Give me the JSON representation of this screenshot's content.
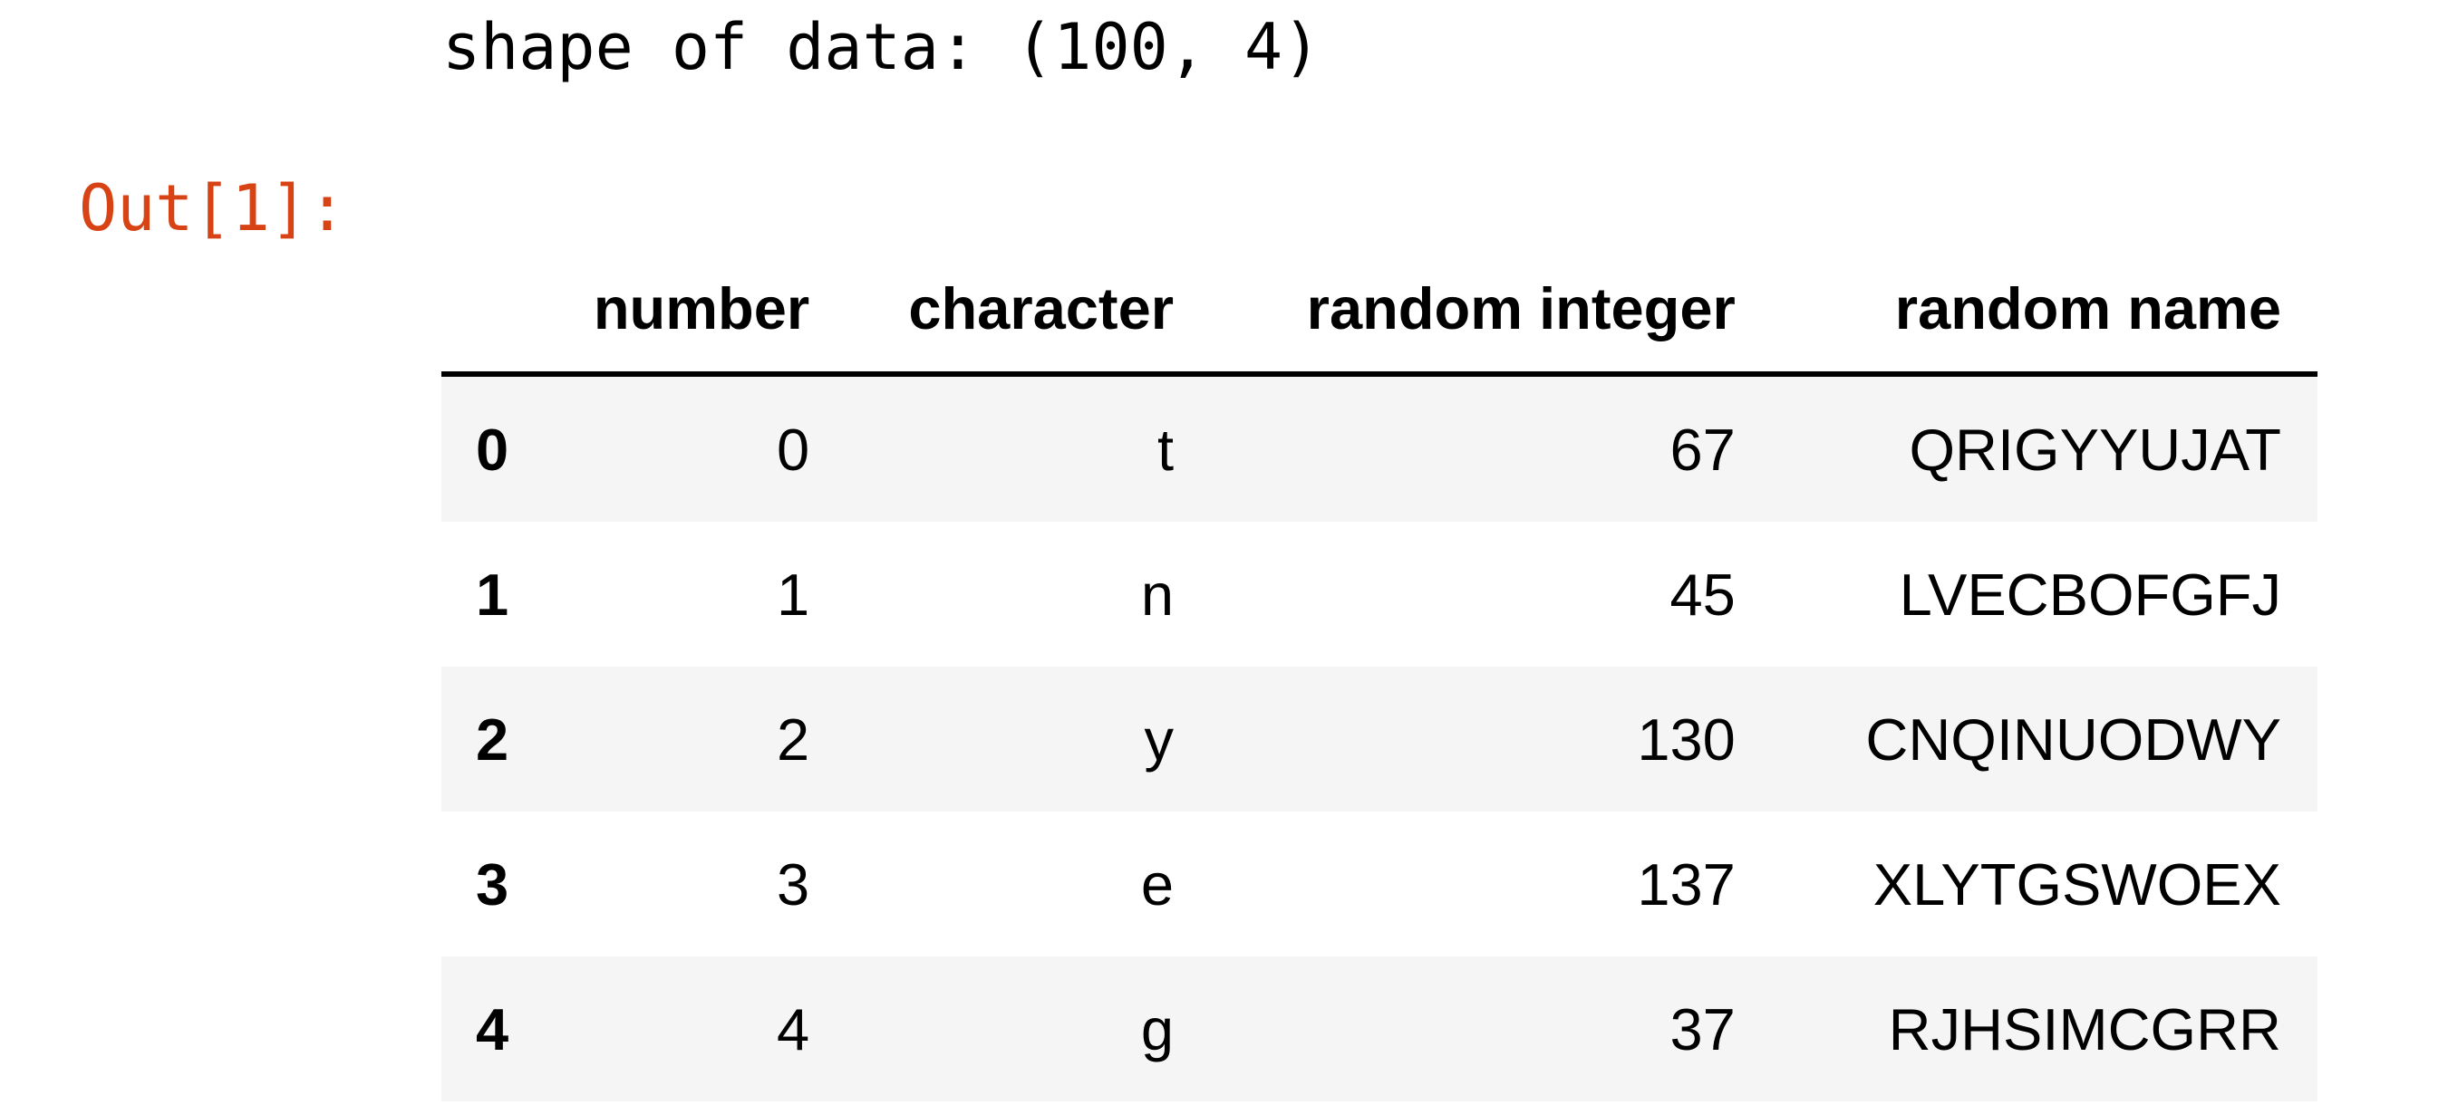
{
  "stdout": {
    "text": "shape of data: (100, 4)"
  },
  "output_prompt": "Out[1]:",
  "table": {
    "columns": [
      "number",
      "character",
      "random integer",
      "random name"
    ],
    "rows": [
      {
        "index": "0",
        "number": "0",
        "character": "t",
        "random_integer": "67",
        "random_name": "QRIGYYUJAT"
      },
      {
        "index": "1",
        "number": "1",
        "character": "n",
        "random_integer": "45",
        "random_name": "LVECBOFGFJ"
      },
      {
        "index": "2",
        "number": "2",
        "character": "y",
        "random_integer": "130",
        "random_name": "CNQINUODWY"
      },
      {
        "index": "3",
        "number": "3",
        "character": "e",
        "random_integer": "137",
        "random_name": "XLYTGSWOEX"
      },
      {
        "index": "4",
        "number": "4",
        "character": "g",
        "random_integer": "37",
        "random_name": "RJHSIMCGRR"
      }
    ]
  },
  "colors": {
    "prompt": "#d84315",
    "striped_row": "#f5f5f5",
    "text": "#000000"
  }
}
